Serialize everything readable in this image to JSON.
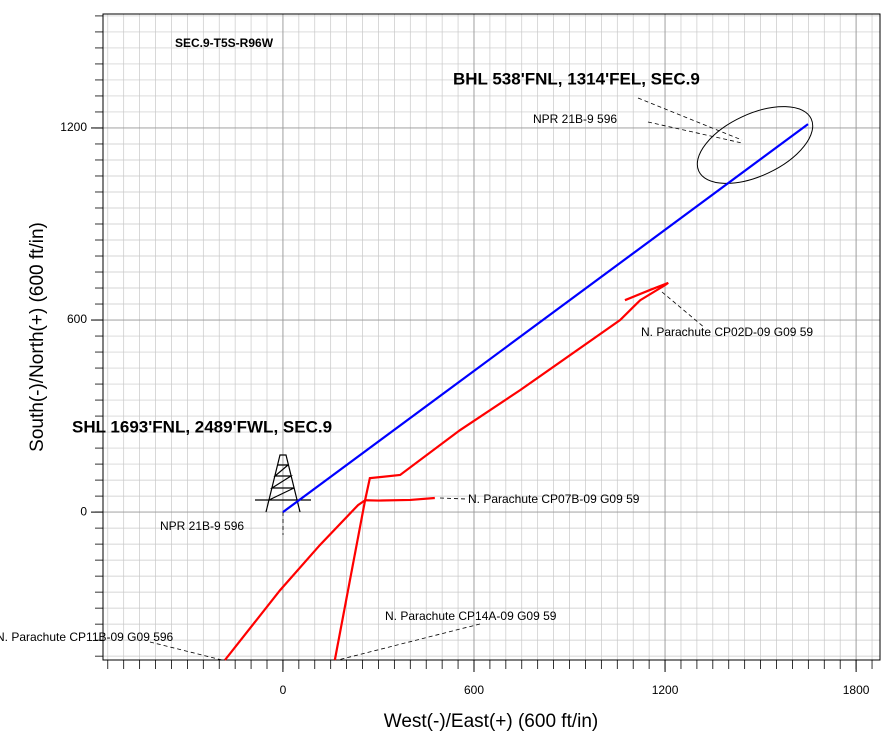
{
  "chart_data": {
    "type": "line",
    "title": "SEC.9-T5S-R96W",
    "x_label": "West(-)/East(+) (600 ft/in)",
    "y_label": "South(-)/North(+) (600 ft/in)",
    "annotations": [
      "BHL 538'FNL, 1314'FEL, SEC.9",
      "SHL 1693'FNL, 2489'FWL, SEC.9"
    ],
    "xlim": [
      -565,
      1875
    ],
    "ylim": [
      -462,
      1556
    ],
    "xticks": [
      0,
      600,
      1200,
      1800
    ],
    "yticks": [
      0,
      600,
      1200
    ],
    "grid": true,
    "title_color": "#ff0000",
    "series": [
      {
        "name": "NPR 21B-9 596",
        "color": "#0000ff",
        "x": [
          0,
          1649
        ],
        "values": [
          0,
          1212
        ]
      },
      {
        "name": "N. Parachute CP02D-09 G09 59",
        "color": "#ff0000",
        "x": [
          258,
          273,
          368,
          556,
          745,
          1059,
          1122,
          1200,
          1210,
          1153,
          1074
        ],
        "values": [
          37,
          106,
          116,
          256,
          381,
          600,
          662,
          709,
          716,
          694,
          662
        ]
      },
      {
        "name": "N. Parachute CP07B-09 G09 59",
        "color": "#ff0000",
        "x": [
          258,
          300,
          400,
          477
        ],
        "values": [
          37,
          36,
          38,
          44
        ]
      },
      {
        "name": "N. Parachute CP11B-09 G09 596",
        "color": "#ff0000",
        "x": [
          258,
          236,
          116,
          -9,
          -182
        ],
        "values": [
          37,
          22,
          -103,
          -244,
          -462
        ]
      },
      {
        "name": "N. Parachute CP14A-09 G09 59",
        "color": "#ff0000",
        "x": [
          258,
          163
        ],
        "values": [
          37,
          -462
        ]
      }
    ]
  }
}
